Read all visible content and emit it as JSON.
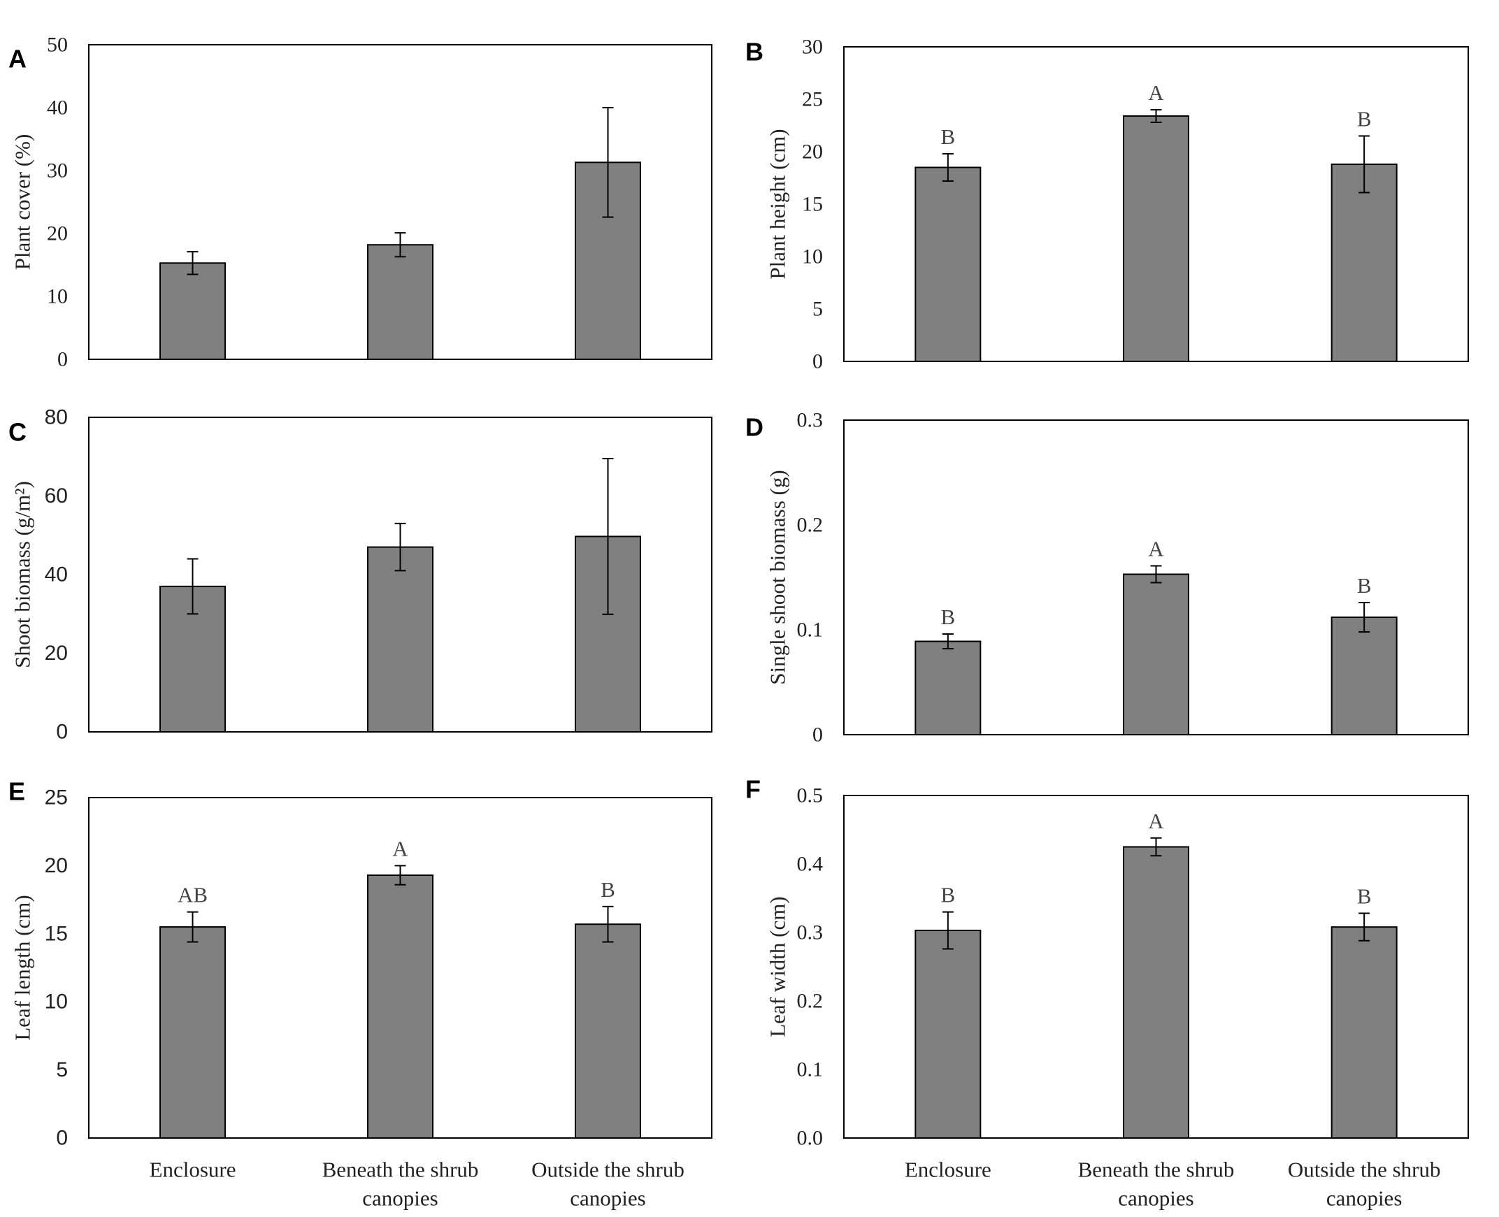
{
  "categories": [
    "Enclosure",
    "Beneath the shrub canopies",
    "Outside the shrub canopies"
  ],
  "category_lines": [
    [
      "Enclosure"
    ],
    [
      "Beneath the shrub",
      "canopies"
    ],
    [
      "Outside the shrub",
      "canopies"
    ]
  ],
  "colors": {
    "bar": "#808080",
    "axis": "#000000",
    "text": "#222222"
  },
  "chart_data": [
    {
      "panel": "A",
      "type": "bar",
      "ylabel": "Plant cover (%)",
      "ylim": [
        0,
        50
      ],
      "yticks": [
        "0",
        "10",
        "20",
        "30",
        "40",
        "50"
      ],
      "tick_font": "serif",
      "values": [
        15.3,
        18.2,
        31.3
      ],
      "errors": [
        1.8,
        1.9,
        8.7
      ],
      "letters": [
        "",
        "",
        ""
      ],
      "show_xlabels": false
    },
    {
      "panel": "B",
      "type": "bar",
      "ylabel": "Plant height (cm)",
      "ylim": [
        0,
        30
      ],
      "yticks": [
        "0",
        "5",
        "10",
        "15",
        "20",
        "25",
        "30"
      ],
      "tick_font": "serif",
      "values": [
        18.5,
        23.4,
        18.8
      ],
      "errors": [
        1.3,
        0.6,
        2.7
      ],
      "letters": [
        "B",
        "A",
        "B"
      ],
      "show_xlabels": false
    },
    {
      "panel": "C",
      "type": "bar",
      "ylabel": "Shoot biomass (g/m²)",
      "ylim": [
        0,
        80
      ],
      "yticks": [
        "0",
        "20",
        "40",
        "60",
        "80"
      ],
      "tick_font": "sans",
      "values": [
        37.0,
        47.0,
        49.7
      ],
      "errors": [
        7.0,
        6.0,
        19.8
      ],
      "letters": [
        "",
        "",
        ""
      ],
      "show_xlabels": false
    },
    {
      "panel": "D",
      "type": "bar",
      "ylabel": "Single shoot biomass (g)",
      "ylim": [
        0,
        0.3
      ],
      "yticks": [
        "0",
        "0.1",
        "0.2",
        "0.3"
      ],
      "tick_font": "serif",
      "values": [
        0.089,
        0.153,
        0.112
      ],
      "errors": [
        0.007,
        0.008,
        0.014
      ],
      "letters": [
        "B",
        "A",
        "B"
      ],
      "show_xlabels": false
    },
    {
      "panel": "E",
      "type": "bar",
      "ylabel": "Leaf length (cm)",
      "ylim": [
        0,
        25
      ],
      "yticks": [
        "0",
        "5",
        "10",
        "15",
        "20",
        "25"
      ],
      "tick_font": "sans",
      "values": [
        15.5,
        19.3,
        15.7
      ],
      "errors": [
        1.1,
        0.7,
        1.3
      ],
      "letters": [
        "AB",
        "A",
        "B"
      ],
      "show_xlabels": true
    },
    {
      "panel": "F",
      "type": "bar",
      "ylabel": "Leaf width (cm)",
      "ylim": [
        0,
        0.5
      ],
      "yticks": [
        "0.0",
        "0.1",
        "0.2",
        "0.3",
        "0.4",
        "0.5"
      ],
      "tick_font": "serif",
      "values": [
        0.303,
        0.425,
        0.308
      ],
      "errors": [
        0.027,
        0.013,
        0.02
      ],
      "letters": [
        "B",
        "A",
        "B"
      ],
      "show_xlabels": true
    }
  ]
}
